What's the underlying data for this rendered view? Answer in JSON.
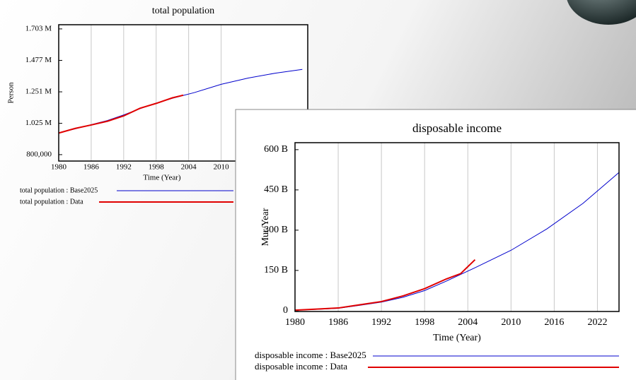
{
  "chart_data": [
    {
      "type": "line",
      "title": "total population",
      "x_label": "Time (Year)",
      "y_label": "Person",
      "x": [
        1980,
        1983,
        1986,
        1989,
        1992,
        1995,
        1998,
        2001,
        2003,
        2005,
        2010,
        2015,
        2020,
        2025
      ],
      "xlim": [
        1980,
        2026
      ],
      "xticks": [
        1980,
        1986,
        1992,
        1998,
        2004,
        2010
      ],
      "ylim": [
        754000,
        1733000
      ],
      "yticks": [
        {
          "value": 800000,
          "label": "800,000"
        },
        {
          "value": 1025000,
          "label": "1.025 M"
        },
        {
          "value": 1251000,
          "label": "1.251 M"
        },
        {
          "value": 1477000,
          "label": "1.477 M"
        },
        {
          "value": 1703000,
          "label": "1.703 M"
        }
      ],
      "grid": "x",
      "series": [
        {
          "name": "total population : Base2025",
          "color": "#0000cc",
          "values": [
            957000,
            985000,
            1015000,
            1045000,
            1085000,
            1130000,
            1170000,
            1205000,
            1225000,
            1245000,
            1305000,
            1350000,
            1385000,
            1412000
          ]
        },
        {
          "name": "total population : Data",
          "color": "#e00000",
          "values": [
            955000,
            988000,
            1013000,
            1040000,
            1078000,
            1133000,
            1168000,
            1208000,
            1227000,
            null,
            null,
            null,
            null,
            null
          ]
        }
      ]
    },
    {
      "type": "line",
      "title": "disposable income",
      "x_label": "Time (Year)",
      "y_label": "Mur/Year",
      "x": [
        1980,
        1983,
        1986,
        1989,
        1992,
        1995,
        1998,
        2001,
        2003,
        2005,
        2010,
        2015,
        2020,
        2025
      ],
      "xlim": [
        1980,
        2025
      ],
      "xticks": [
        1980,
        1986,
        1992,
        1998,
        2004,
        2010,
        2016,
        2022
      ],
      "ylim": [
        -3000000000,
        626000000000
      ],
      "yticks": [
        0,
        {
          "value": 150000000000,
          "label": "150 B"
        },
        {
          "value": 300000000000,
          "label": "300 B"
        },
        {
          "value": 450000000000,
          "label": "450 B"
        },
        {
          "value": 600000000000,
          "label": "600 B"
        }
      ],
      "grid": "x",
      "series": [
        {
          "name": "disposable income : Base2025",
          "color": "#0000cc",
          "values": [
            2000000000,
            5000000000,
            9000000000,
            20000000000,
            32000000000,
            50000000000,
            75000000000,
            110000000000,
            135000000000,
            160000000000,
            225000000000,
            305000000000,
            400000000000,
            515000000000
          ]
        },
        {
          "name": "disposable income : Data",
          "color": "#e00000",
          "values": [
            2000000000,
            6000000000,
            10000000000,
            22000000000,
            34000000000,
            55000000000,
            82000000000,
            118000000000,
            138000000000,
            190000000000,
            null,
            null,
            null,
            null
          ]
        }
      ]
    }
  ]
}
